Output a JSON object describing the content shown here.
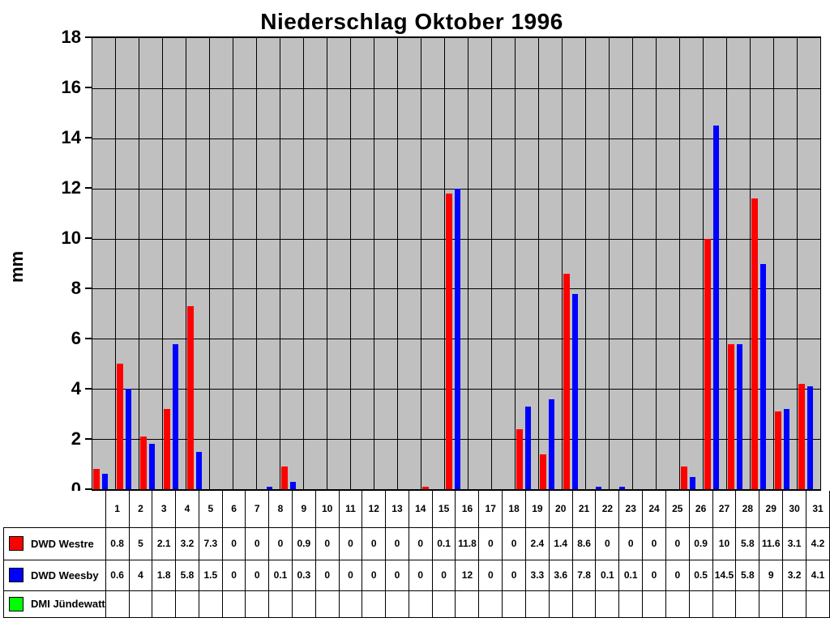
{
  "title": "Niederschlag Oktober 1996",
  "y_axis": {
    "label": "mm",
    "ticks": [
      18,
      16,
      14,
      12,
      10,
      8,
      6,
      4,
      2,
      0
    ]
  },
  "colors": {
    "plot_background": "#c0c0c0",
    "gridline": "#000000",
    "series_red": "#ff0000",
    "series_blue": "#0000ff",
    "series_green": "#00ff00"
  },
  "chart_data": {
    "type": "bar",
    "title": "Niederschlag Oktober 1996",
    "xlabel": "",
    "ylabel": "mm",
    "ylim": [
      0,
      18
    ],
    "ystep": 2,
    "grid": true,
    "legend_position": "table-left",
    "categories": [
      1,
      2,
      3,
      4,
      5,
      6,
      7,
      8,
      9,
      10,
      11,
      12,
      13,
      14,
      15,
      16,
      17,
      18,
      19,
      20,
      21,
      22,
      23,
      24,
      25,
      26,
      27,
      28,
      29,
      30,
      31
    ],
    "series": [
      {
        "name": "DWD Westre",
        "slug": "dwd-westre",
        "color": "#ff0000",
        "values": [
          0.8,
          5,
          2.1,
          3.2,
          7.3,
          0,
          0,
          0,
          0.9,
          0,
          0,
          0,
          0,
          0,
          0.1,
          11.8,
          0,
          0,
          2.4,
          1.4,
          8.6,
          0,
          0,
          0,
          0,
          0.9,
          10,
          5.8,
          11.6,
          3.1,
          4.2
        ]
      },
      {
        "name": "DWD Weesby",
        "slug": "dwd-weesby",
        "color": "#0000ff",
        "values": [
          0.6,
          4,
          1.8,
          5.8,
          1.5,
          0,
          0,
          0.1,
          0.3,
          0,
          0,
          0,
          0,
          0,
          0,
          12,
          0,
          0,
          3.3,
          3.6,
          7.8,
          0.1,
          0.1,
          0,
          0,
          0.5,
          14.5,
          5.8,
          9,
          3.2,
          4.1
        ]
      },
      {
        "name": "DMI Jündewatt",
        "slug": "dmi-juendewatt",
        "color": "#00ff00",
        "values": null
      }
    ]
  }
}
